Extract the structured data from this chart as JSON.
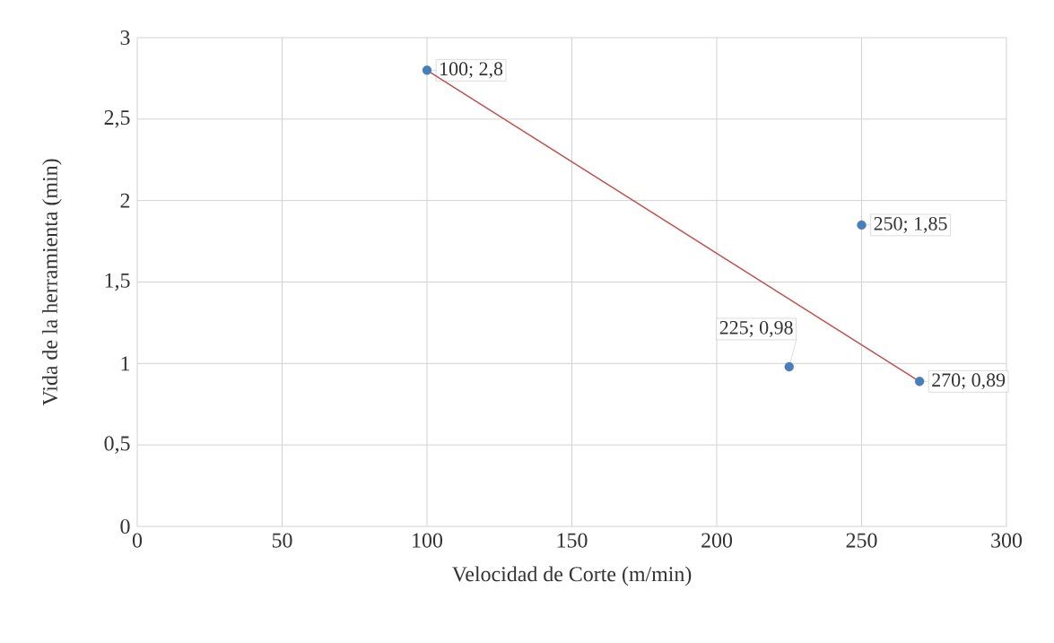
{
  "chart_data": {
    "type": "scatter",
    "xlabel": "Velocidad de Corte (m/min)",
    "ylabel": "Vida de la herramienta (min)",
    "series": [
      {
        "x": [
          100,
          250,
          225,
          270
        ],
        "values": [
          2.8,
          1.85,
          0.98,
          0.89
        ],
        "color": "#4a7ebb",
        "marker": "circle",
        "value_labels": [
          "100; 2,8",
          "250; 1,85",
          "225; 0,98",
          "270; 0,89"
        ]
      },
      {
        "type": "line",
        "x": [
          100,
          270
        ],
        "values": [
          2.8,
          0.89
        ],
        "color": "#c0504d",
        "marker": "none",
        "line_style": "solid"
      }
    ],
    "xlim": [
      0,
      300
    ],
    "xticks": [
      0,
      50,
      100,
      150,
      200,
      250,
      300
    ],
    "ylim": [
      0,
      3
    ],
    "yticks": [
      0,
      {
        "value": 0.5,
        "label": "0,5"
      },
      1,
      {
        "value": 1.5,
        "label": "1,5"
      },
      2,
      {
        "value": 2.5,
        "label": "2,5"
      },
      3
    ],
    "grid": true
  }
}
